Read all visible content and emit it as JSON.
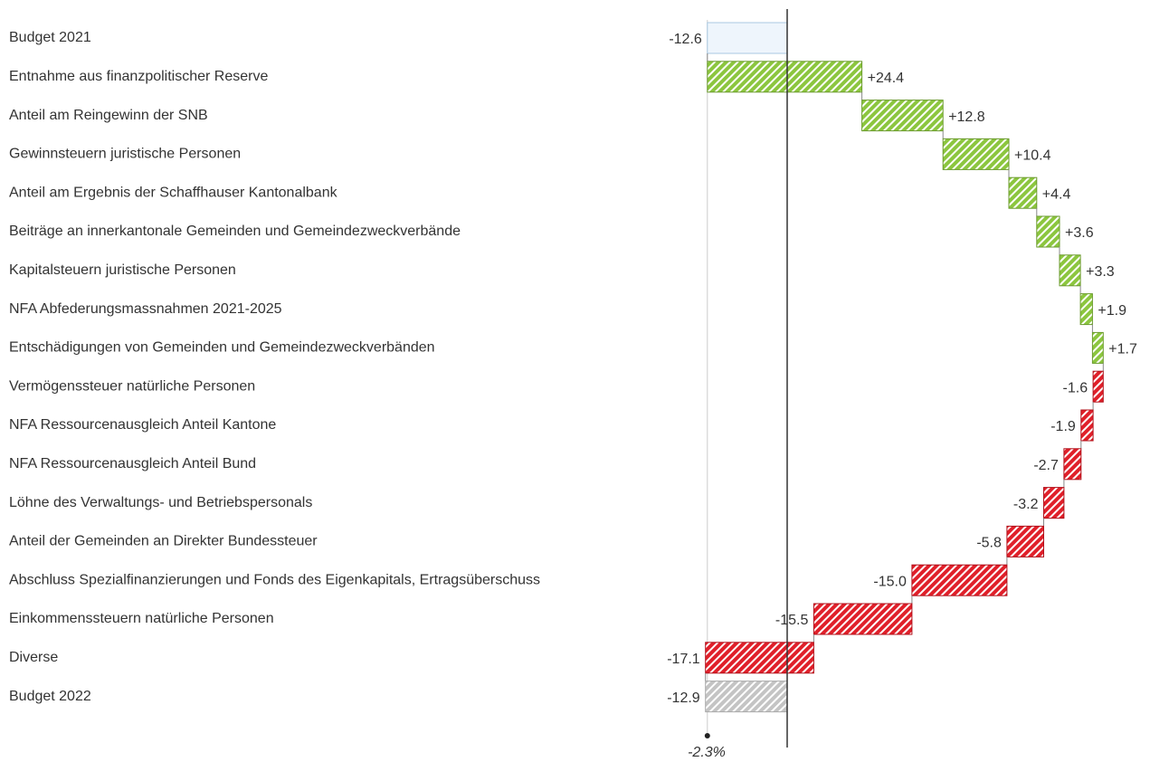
{
  "chart_data": {
    "type": "waterfall",
    "categories": [
      "Budget 2021",
      "Entnahme aus finanzpolitischer Reserve",
      "Anteil am Reingewinn der SNB",
      "Gewinnsteuern juristische Personen",
      "Anteil am Ergebnis der Schaffhauser Kantonalbank",
      "Beiträge an innerkantonale Gemeinden und Gemeindezweckverbände",
      "Kapitalsteuern juristische Personen",
      "NFA Abfederungsmassnahmen 2021-2025",
      "Entschädigungen von Gemeinden und Gemeindezweckverbänden",
      "Vermögenssteuer natürliche Personen",
      "NFA Ressourcenausgleich Anteil Kantone",
      "NFA Ressourcenausgleich Anteil Bund",
      "Löhne des Verwaltungs- und Betriebspersonals",
      "Anteil der Gemeinden an Direkter Bundessteuer",
      "Abschluss Spezialfinanzierungen und Fonds des Eigenkapitals, Ertragsüberschuss",
      "Einkommenssteuern natürliche Personen",
      "Diverse",
      "Budget 2022"
    ],
    "values": [
      -12.6,
      24.4,
      12.8,
      10.4,
      4.4,
      3.6,
      3.3,
      1.9,
      1.7,
      -1.6,
      -1.9,
      -2.7,
      -3.2,
      -5.8,
      -15.0,
      -15.5,
      -17.1,
      -12.9
    ],
    "value_labels": [
      "-12.6",
      "+24.4",
      "+12.8",
      "+10.4",
      "+4.4",
      "+3.6",
      "+3.3",
      "+1.9",
      "+1.7",
      "-1.6",
      "-1.9",
      "-2.7",
      "-3.2",
      "-5.8",
      "-15.0",
      "-15.5",
      "-17.1",
      "-12.9"
    ],
    "colors": {
      "start": "#eef5fc",
      "increase": "#8cc63f",
      "decrease": "#e0202a",
      "end": "#c4c4c4"
    },
    "annotation": "-2.3%",
    "xlim": [
      -13,
      50
    ]
  }
}
